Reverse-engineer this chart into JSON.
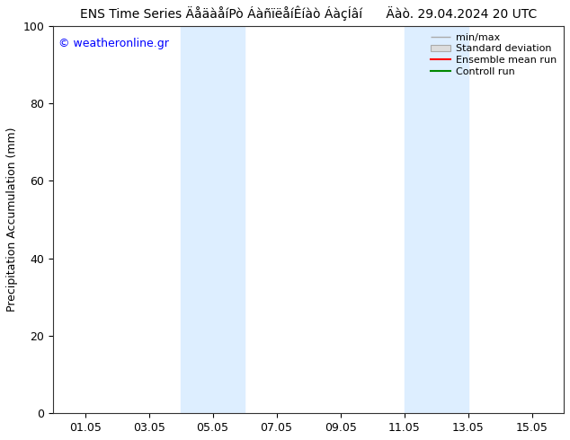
{
  "title_left": "ENS Time Series ÄåäàåíPò ÁàñïëåíÊíàò ÁàçÍâí",
  "date_str": "Äàò. 29.04.2024 20 UTC",
  "ylabel": "Precipitation Accumulation (mm)",
  "copyright": "© weatheronline.gr",
  "ylim": [
    0,
    100
  ],
  "yticks": [
    0,
    20,
    40,
    60,
    80,
    100
  ],
  "xtick_labels": [
    "01.05",
    "03.05",
    "05.05",
    "07.05",
    "09.05",
    "11.05",
    "13.05",
    "15.05"
  ],
  "shaded_regions": [
    {
      "x_start": "2024-05-04",
      "x_end": "2024-05-06",
      "color": "#ddeeff"
    },
    {
      "x_start": "2024-05-11",
      "x_end": "2024-05-13",
      "color": "#ddeeff"
    }
  ],
  "x_start": "2024-04-30",
  "x_end": "2024-05-16",
  "background_color": "#ffffff",
  "plot_bg_color": "#ffffff",
  "font_size_title": 10,
  "font_size_axis": 9,
  "font_size_legend": 8,
  "font_size_ticks": 9,
  "font_size_copyright": 9,
  "minmax_color": "#aaaaaa",
  "std_color": "#cccccc",
  "ensemble_color": "#ff0000",
  "control_color": "#008800"
}
